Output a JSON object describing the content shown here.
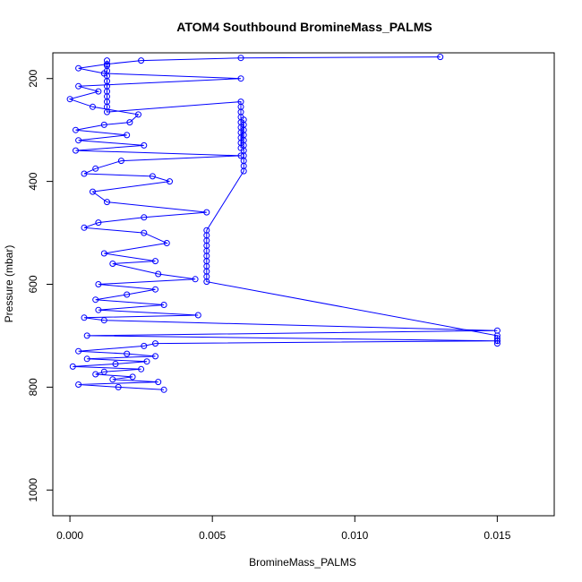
{
  "chart_data": {
    "type": "scatter",
    "title": "ATOM4 Southbound BromineMass_PALMS",
    "xlabel": "BromineMass_PALMS",
    "ylabel": "Pressure (mbar)",
    "xlim": [
      -0.0006,
      0.017
    ],
    "ylim": [
      1050,
      150
    ],
    "y_reversed": true,
    "grid": false,
    "legend": "none",
    "marker": "open-circle",
    "connected": true,
    "color": "#0000ff",
    "xticks": [
      0.0,
      0.005,
      0.01,
      0.015
    ],
    "xtick_labels": [
      "0.000",
      "0.005",
      "0.010",
      "0.015"
    ],
    "yticks": [
      200,
      400,
      600,
      800,
      1000
    ],
    "ytick_labels": [
      "200",
      "400",
      "600",
      "800",
      "1000"
    ],
    "series": [
      {
        "x": [
          0.013,
          0.006,
          0.0025,
          0.0013,
          0.0003,
          0.0012,
          0.006,
          0.0003,
          0.001,
          0.0,
          0.0008,
          0.0024,
          0.0021,
          0.0012,
          0.0002,
          0.002,
          0.0003,
          0.0026,
          0.0002,
          0.006,
          0.0018,
          0.0009,
          0.0005,
          0.0029,
          0.0035,
          0.0008,
          0.0013,
          0.0048,
          0.0026,
          0.001,
          0.0005,
          0.0026,
          0.0034,
          0.0012,
          0.003,
          0.0015,
          0.0031,
          0.0044,
          0.001,
          0.003,
          0.002,
          0.0009,
          0.0033,
          0.001,
          0.0045,
          0.0005,
          0.0012,
          0.015,
          0.0006,
          0.015,
          0.003,
          0.0026,
          0.0003,
          0.002,
          0.003,
          0.0006,
          0.0027,
          0.0016,
          0.0001,
          0.0025,
          0.0012,
          0.0009,
          0.0022,
          0.0015,
          0.0031,
          0.0003,
          0.0017,
          0.0033
        ],
        "y": [
          158,
          160,
          165,
          172,
          180,
          190,
          200,
          215,
          225,
          240,
          255,
          270,
          285,
          290,
          300,
          310,
          320,
          330,
          340,
          350,
          360,
          375,
          385,
          390,
          400,
          420,
          440,
          460,
          470,
          480,
          490,
          500,
          520,
          540,
          555,
          560,
          580,
          590,
          600,
          610,
          620,
          630,
          640,
          650,
          660,
          665,
          670,
          690,
          700,
          710,
          715,
          720,
          730,
          735,
          740,
          745,
          750,
          755,
          760,
          765,
          770,
          775,
          780,
          785,
          790,
          795,
          800,
          805
        ]
      },
      {
        "x": [
          0.0013,
          0.0013,
          0.0013,
          0.0013,
          0.0013,
          0.0013,
          0.0013,
          0.0013,
          0.0013,
          0.0013,
          0.0013,
          0.006,
          0.006,
          0.006,
          0.006,
          0.006,
          0.006,
          0.006,
          0.006,
          0.006,
          0.006,
          0.0061,
          0.0061,
          0.0061,
          0.0061,
          0.0061,
          0.0061,
          0.0061,
          0.0061,
          0.0061,
          0.0061,
          0.0061,
          0.0048,
          0.0048,
          0.0048,
          0.0048,
          0.0048,
          0.0048,
          0.0048,
          0.0048,
          0.0048,
          0.0048,
          0.0048,
          0.015,
          0.015,
          0.015,
          0.015
        ],
        "y": [
          165,
          175,
          185,
          195,
          205,
          215,
          225,
          235,
          245,
          255,
          265,
          245,
          255,
          265,
          275,
          285,
          295,
          305,
          315,
          325,
          335,
          280,
          290,
          300,
          310,
          320,
          330,
          340,
          350,
          360,
          370,
          380,
          495,
          505,
          515,
          525,
          535,
          545,
          555,
          565,
          575,
          585,
          595,
          700,
          705,
          710,
          715
        ]
      }
    ]
  }
}
